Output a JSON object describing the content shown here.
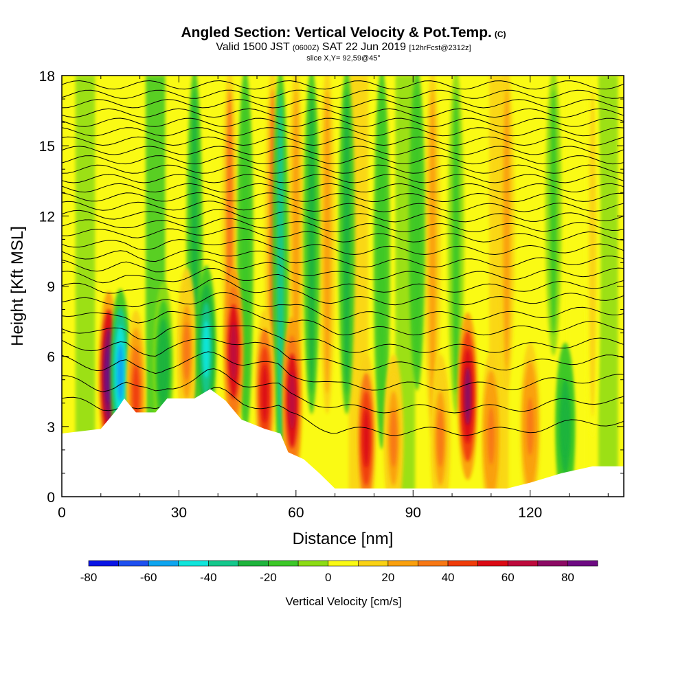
{
  "header": {
    "title": "Angled Section: Vertical Velocity & Pot.Temp.",
    "title_suffix": "(C)",
    "subtitle_prefix": "Valid 1500 JST",
    "subtitle_zulu": "(0600Z)",
    "subtitle_date": "SAT 22 Jun 2019",
    "subtitle_forecast": "[12hrFcst@2312z]",
    "slice": "slice X,Y= 92,59@45°"
  },
  "chart_data": {
    "type": "heatmap",
    "title": "Angled Section: Vertical Velocity & Pot.Temp.",
    "xlabel": "Distance [nm]",
    "ylabel": "Height [Kft MSL]",
    "xlim": [
      0,
      144
    ],
    "ylim": [
      0,
      18
    ],
    "x_ticks": [
      "0",
      "30",
      "60",
      "90",
      "120"
    ],
    "x_tick_values": [
      0,
      30,
      60,
      90,
      120
    ],
    "y_ticks": [
      "0",
      "3",
      "6",
      "9",
      "12",
      "15",
      "18"
    ],
    "y_tick_values": [
      0,
      3,
      6,
      9,
      12,
      15,
      18
    ],
    "colorbar": {
      "label": "Vertical Velocity [cm/s]",
      "min": -80,
      "max": 90,
      "step": 10,
      "tick_labels": [
        "-80",
        "-60",
        "-40",
        "-20",
        "0",
        "20",
        "40",
        "60",
        "80"
      ],
      "tick_values": [
        -80,
        -60,
        -40,
        -20,
        0,
        20,
        40,
        60,
        80
      ],
      "colors": [
        "#0a14e6",
        "#1e50f0",
        "#0ea5f0",
        "#10e6dc",
        "#14c88c",
        "#1eb43c",
        "#3cc828",
        "#8cdc14",
        "#fafa14",
        "#fad214",
        "#faa00e",
        "#f87814",
        "#f03c0a",
        "#dc0a14",
        "#be0a3c",
        "#8c0a64",
        "#6e0a82"
      ]
    },
    "terrain_profile": [
      [
        0,
        2.7
      ],
      [
        10,
        2.9
      ],
      [
        14,
        3.7
      ],
      [
        16,
        4.2
      ],
      [
        19,
        3.6
      ],
      [
        24,
        3.6
      ],
      [
        27,
        4.2
      ],
      [
        34,
        4.2
      ],
      [
        38,
        4.6
      ],
      [
        42,
        4.1
      ],
      [
        46,
        3.3
      ],
      [
        52,
        2.9
      ],
      [
        56,
        2.7
      ],
      [
        58,
        1.9
      ],
      [
        62,
        1.6
      ],
      [
        66,
        1.0
      ],
      [
        70,
        0.35
      ],
      [
        80,
        0.35
      ],
      [
        100,
        0.35
      ],
      [
        114,
        0.35
      ],
      [
        120,
        0.6
      ],
      [
        128,
        1.0
      ],
      [
        136,
        1.3
      ],
      [
        144,
        1.3
      ]
    ],
    "vertical_velocity_cells": [
      {
        "x": 12,
        "z": 5.2,
        "w": 85
      },
      {
        "x": 15,
        "z": 5.3,
        "w": -55
      },
      {
        "x": 19,
        "z": 4.4,
        "w": 45
      },
      {
        "x": 26,
        "z": 5.6,
        "w": -25
      },
      {
        "x": 32,
        "z": 6.2,
        "w": 30
      },
      {
        "x": 37,
        "z": 6.3,
        "w": -45
      },
      {
        "x": 44,
        "z": 6.2,
        "w": 60
      },
      {
        "x": 52,
        "z": 4.4,
        "w": 50
      },
      {
        "x": 59,
        "z": 4.1,
        "w": 65
      },
      {
        "x": 78,
        "z": 2.5,
        "w": 55
      },
      {
        "x": 85,
        "z": 2.5,
        "w": 30
      },
      {
        "x": 97,
        "z": 2.5,
        "w": 30
      },
      {
        "x": 104,
        "z": 4.3,
        "w": 70
      },
      {
        "x": 110,
        "z": 2.6,
        "w": 35
      },
      {
        "x": 120,
        "z": 3.0,
        "w": 35
      },
      {
        "x": 129,
        "z": 3.0,
        "w": -30
      }
    ],
    "updraft_columns": [
      {
        "x": 43,
        "z": 12.0,
        "w": 30
      },
      {
        "x": 54,
        "z": 13.5,
        "w": 30
      },
      {
        "x": 60,
        "z": 12.5,
        "w": 25
      },
      {
        "x": 68,
        "z": 13.0,
        "w": 20
      },
      {
        "x": 95,
        "z": 14.0,
        "w": 20
      },
      {
        "x": 114,
        "z": 12.0,
        "w": 20
      },
      {
        "x": 136,
        "z": 14.0,
        "w": 15
      }
    ],
    "downdraft_columns": [
      {
        "x": 34,
        "z": 14.5,
        "w": -25
      },
      {
        "x": 47,
        "z": 14.0,
        "w": -20
      },
      {
        "x": 56,
        "z": 15.0,
        "w": -35
      },
      {
        "x": 64,
        "z": 13.0,
        "w": -25
      },
      {
        "x": 73,
        "z": 13.0,
        "w": -25
      },
      {
        "x": 82,
        "z": 14.5,
        "w": -20
      },
      {
        "x": 91,
        "z": 12.0,
        "w": -20
      },
      {
        "x": 101,
        "z": 13.0,
        "w": -15
      },
      {
        "x": 126,
        "z": 10.5,
        "w": -15
      }
    ],
    "theta_isentrope_base_heights": [
      3.5,
      4.4,
      5.3,
      6.1,
      6.8,
      7.5,
      8.1,
      8.7,
      9.2,
      9.7,
      10.2,
      10.7,
      11.2,
      11.6,
      12.0,
      12.4,
      12.8,
      13.2,
      13.6,
      14.0,
      14.4,
      14.8,
      15.2,
      15.6,
      16.0,
      16.4,
      16.8,
      17.2,
      17.6
    ]
  }
}
